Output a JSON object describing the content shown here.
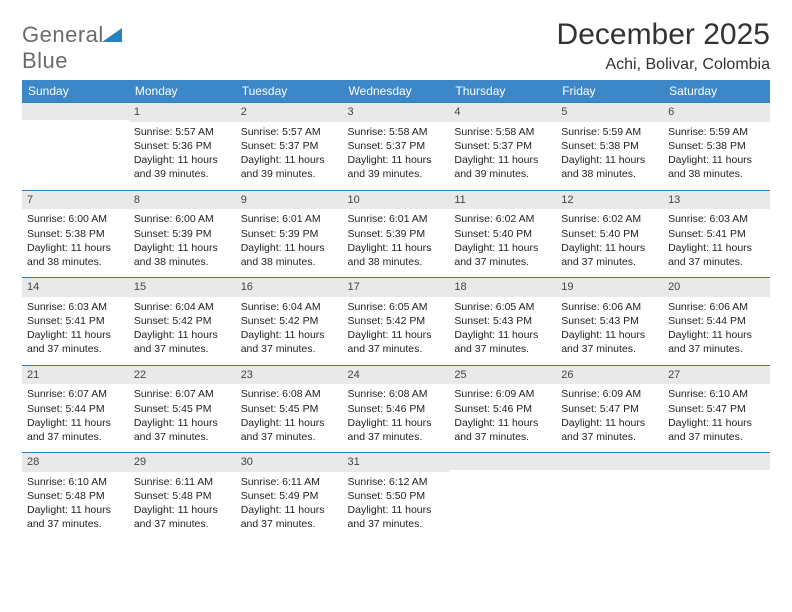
{
  "logo": {
    "part1": "General",
    "part2": "Blue"
  },
  "title": "December 2025",
  "location": "Achi, Bolivar, Colombia",
  "colors": {
    "header_bg": "#3b87c8",
    "header_text": "#ffffff",
    "daynum_bg": "#e9e9e9",
    "daynum_border": "#2a7fbf",
    "body_text": "#222222",
    "logo_gray": "#6b6b6b",
    "logo_blue": "#2a7fbf"
  },
  "weekdays": [
    "Sunday",
    "Monday",
    "Tuesday",
    "Wednesday",
    "Thursday",
    "Friday",
    "Saturday"
  ],
  "weeks": [
    [
      null,
      {
        "n": "1",
        "sr": "5:57 AM",
        "ss": "5:36 PM",
        "dl": "11 hours and 39 minutes."
      },
      {
        "n": "2",
        "sr": "5:57 AM",
        "ss": "5:37 PM",
        "dl": "11 hours and 39 minutes."
      },
      {
        "n": "3",
        "sr": "5:58 AM",
        "ss": "5:37 PM",
        "dl": "11 hours and 39 minutes."
      },
      {
        "n": "4",
        "sr": "5:58 AM",
        "ss": "5:37 PM",
        "dl": "11 hours and 39 minutes."
      },
      {
        "n": "5",
        "sr": "5:59 AM",
        "ss": "5:38 PM",
        "dl": "11 hours and 38 minutes."
      },
      {
        "n": "6",
        "sr": "5:59 AM",
        "ss": "5:38 PM",
        "dl": "11 hours and 38 minutes."
      }
    ],
    [
      {
        "n": "7",
        "sr": "6:00 AM",
        "ss": "5:38 PM",
        "dl": "11 hours and 38 minutes."
      },
      {
        "n": "8",
        "sr": "6:00 AM",
        "ss": "5:39 PM",
        "dl": "11 hours and 38 minutes."
      },
      {
        "n": "9",
        "sr": "6:01 AM",
        "ss": "5:39 PM",
        "dl": "11 hours and 38 minutes."
      },
      {
        "n": "10",
        "sr": "6:01 AM",
        "ss": "5:39 PM",
        "dl": "11 hours and 38 minutes."
      },
      {
        "n": "11",
        "sr": "6:02 AM",
        "ss": "5:40 PM",
        "dl": "11 hours and 37 minutes."
      },
      {
        "n": "12",
        "sr": "6:02 AM",
        "ss": "5:40 PM",
        "dl": "11 hours and 37 minutes."
      },
      {
        "n": "13",
        "sr": "6:03 AM",
        "ss": "5:41 PM",
        "dl": "11 hours and 37 minutes."
      }
    ],
    [
      {
        "n": "14",
        "sr": "6:03 AM",
        "ss": "5:41 PM",
        "dl": "11 hours and 37 minutes."
      },
      {
        "n": "15",
        "sr": "6:04 AM",
        "ss": "5:42 PM",
        "dl": "11 hours and 37 minutes."
      },
      {
        "n": "16",
        "sr": "6:04 AM",
        "ss": "5:42 PM",
        "dl": "11 hours and 37 minutes."
      },
      {
        "n": "17",
        "sr": "6:05 AM",
        "ss": "5:42 PM",
        "dl": "11 hours and 37 minutes."
      },
      {
        "n": "18",
        "sr": "6:05 AM",
        "ss": "5:43 PM",
        "dl": "11 hours and 37 minutes."
      },
      {
        "n": "19",
        "sr": "6:06 AM",
        "ss": "5:43 PM",
        "dl": "11 hours and 37 minutes."
      },
      {
        "n": "20",
        "sr": "6:06 AM",
        "ss": "5:44 PM",
        "dl": "11 hours and 37 minutes."
      }
    ],
    [
      {
        "n": "21",
        "sr": "6:07 AM",
        "ss": "5:44 PM",
        "dl": "11 hours and 37 minutes."
      },
      {
        "n": "22",
        "sr": "6:07 AM",
        "ss": "5:45 PM",
        "dl": "11 hours and 37 minutes."
      },
      {
        "n": "23",
        "sr": "6:08 AM",
        "ss": "5:45 PM",
        "dl": "11 hours and 37 minutes."
      },
      {
        "n": "24",
        "sr": "6:08 AM",
        "ss": "5:46 PM",
        "dl": "11 hours and 37 minutes."
      },
      {
        "n": "25",
        "sr": "6:09 AM",
        "ss": "5:46 PM",
        "dl": "11 hours and 37 minutes."
      },
      {
        "n": "26",
        "sr": "6:09 AM",
        "ss": "5:47 PM",
        "dl": "11 hours and 37 minutes."
      },
      {
        "n": "27",
        "sr": "6:10 AM",
        "ss": "5:47 PM",
        "dl": "11 hours and 37 minutes."
      }
    ],
    [
      {
        "n": "28",
        "sr": "6:10 AM",
        "ss": "5:48 PM",
        "dl": "11 hours and 37 minutes."
      },
      {
        "n": "29",
        "sr": "6:11 AM",
        "ss": "5:48 PM",
        "dl": "11 hours and 37 minutes."
      },
      {
        "n": "30",
        "sr": "6:11 AM",
        "ss": "5:49 PM",
        "dl": "11 hours and 37 minutes."
      },
      {
        "n": "31",
        "sr": "6:12 AM",
        "ss": "5:50 PM",
        "dl": "11 hours and 37 minutes."
      },
      null,
      null,
      null
    ]
  ],
  "labels": {
    "sunrise": "Sunrise: ",
    "sunset": "Sunset: ",
    "daylight": "Daylight: "
  }
}
